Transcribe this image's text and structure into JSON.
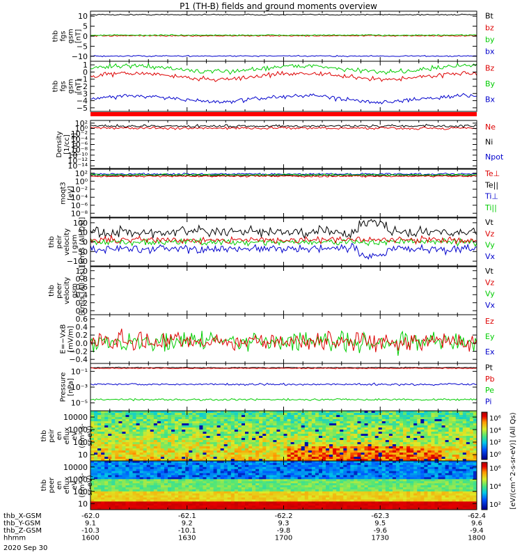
{
  "title": "P1 (TH-B) fields and ground moments overview",
  "footer": {
    "rows": [
      {
        "label": "thb_X-GSM",
        "values": [
          "-62.0",
          "-62.1",
          "-62.2",
          "-62.3",
          "-62.4"
        ]
      },
      {
        "label": "thb_Y-GSM",
        "values": [
          "9.1",
          "9.2",
          "9.3",
          "9.5",
          "9.6"
        ]
      },
      {
        "label": "thb_Z-GSM",
        "values": [
          "-10.3",
          "-10.1",
          "-9.8",
          "-9.6",
          "-9.4"
        ]
      },
      {
        "label": "hhmm",
        "values": [
          "1600",
          "1630",
          "1700",
          "1730",
          "1800"
        ]
      }
    ],
    "date": "2020 Sep 30"
  },
  "colorbar": {
    "label": "[eV/(cm^2-s-sr-eV)] (All Qs)",
    "upper_ticks": [
      "10⁶",
      "10⁴",
      "10²",
      "10⁰"
    ],
    "lower_ticks": [
      "10⁶",
      "10⁴",
      "10²"
    ]
  },
  "chart_data": [
    {
      "type": "line",
      "ylabel_lines": [
        "thb",
        "fgs",
        "gsm",
        "[nT]"
      ],
      "yticks": [
        "10",
        "5",
        "0",
        "−5",
        "−10"
      ],
      "ylim": [
        -12,
        12
      ],
      "legend": [
        "Bt",
        "bz",
        "by",
        "bx"
      ],
      "legend_colors": [
        "#000000",
        "#dd0000",
        "#00cc00",
        "#0000cc"
      ],
      "series": [
        {
          "name": "Bt",
          "color": "#000000",
          "approx": 10.3
        },
        {
          "name": "bz",
          "color": "#dd0000",
          "approx": 0.2
        },
        {
          "name": "by",
          "color": "#00cc00",
          "approx": 0.5
        },
        {
          "name": "bx",
          "color": "#0000cc",
          "approx": -9.5
        }
      ]
    },
    {
      "type": "line",
      "ylabel_lines": [
        "thb",
        "fgs",
        "gsm",
        "[nT]"
      ],
      "yticks": [
        "1",
        "0",
        "−1",
        "−2",
        "−3",
        "−4",
        "−5"
      ],
      "ylim": [
        -5.5,
        1.2
      ],
      "legend": [
        "Bz",
        "By",
        "Bx"
      ],
      "legend_colors": [
        "#dd0000",
        "#00cc00",
        "#0000cc"
      ],
      "series": [
        {
          "name": "Bz",
          "color": "#dd0000",
          "approx": -0.8
        },
        {
          "name": "By",
          "color": "#00cc00",
          "approx": 0.2
        },
        {
          "name": "Bx",
          "color": "#0000cc",
          "approx": -3.8
        }
      ]
    },
    {
      "type": "line",
      "ylabel_lines": [
        "Density",
        "[1/cc]",
        "[cm-3]"
      ],
      "yticks": [
        "10²",
        "10⁰",
        "10⁻²",
        "10⁻⁴",
        "10⁻⁶",
        "10⁻⁸",
        "10⁻¹⁰",
        "10⁻¹²",
        "10⁻¹⁴"
      ],
      "ylim": [
        -15,
        2
      ],
      "legend": [
        "Ne",
        "Ni",
        "Npot"
      ],
      "legend_colors": [
        "#dd0000",
        "#000000",
        "#0000cc"
      ]
    },
    {
      "type": "line",
      "ylabel_lines": [
        "moqt3",
        "[eV]"
      ],
      "yticks": [
        "10²",
        "10⁰",
        "10⁻²",
        "10⁻⁴",
        "10⁻⁶",
        "10⁻⁸"
      ],
      "ylim": [
        -9,
        3
      ],
      "legend": [
        "Te⊥",
        "Te||",
        "Ti⊥",
        "Ti||"
      ],
      "legend_colors": [
        "#dd0000",
        "#000000",
        "#0000cc",
        "#00cc00"
      ]
    },
    {
      "type": "line",
      "ylabel_lines": [
        "thb",
        "peir",
        "velocity",
        "gsm",
        "[km/s (All Qs)]"
      ],
      "yticks": [
        "100",
        "50",
        "0",
        "−50",
        "−100"
      ],
      "ylim": [
        -110,
        110
      ],
      "legend": [
        "Vt",
        "Vz",
        "Vy",
        "Vx"
      ],
      "legend_colors": [
        "#000000",
        "#dd0000",
        "#00cc00",
        "#0000cc"
      ]
    },
    {
      "type": "line",
      "ylabel_lines": [
        "thb",
        "peer",
        "velocity",
        "gsm",
        "[km/s (All Qs)]"
      ],
      "yticks": [
        "1.0",
        "0.8",
        "0.6",
        "0.4",
        "0.2",
        "0.0"
      ],
      "ylim": [
        0,
        1
      ],
      "legend": [
        "Vt",
        "Vz",
        "Vy",
        "Vx"
      ],
      "legend_colors": [
        "#000000",
        "#dd0000",
        "#00cc00",
        "#0000cc"
      ]
    },
    {
      "type": "line",
      "ylabel_lines": [
        "E=−VxB",
        "[mV/m]"
      ],
      "yticks": [
        "0.6",
        "0.4",
        "0.2",
        "0.0",
        "−0.2",
        "−0.4"
      ],
      "ylim": [
        -0.4,
        0.6
      ],
      "legend": [
        "Ez",
        "Ey",
        "Ex"
      ],
      "legend_colors": [
        "#dd0000",
        "#00cc00",
        "#0000cc"
      ]
    },
    {
      "type": "line",
      "ylabel_lines": [
        "Pressure",
        "[nPa]"
      ],
      "yticks": [
        "10⁻¹",
        "10⁻³",
        "10⁻⁵"
      ],
      "ylim": [
        -5.5,
        -0.5
      ],
      "legend": [
        "Pt",
        "Pb",
        "Pe",
        "Pi"
      ],
      "legend_colors": [
        "#000000",
        "#dd0000",
        "#00cc00",
        "#0000cc"
      ]
    },
    {
      "type": "heatmap",
      "ylabel_lines": [
        "thb",
        "peir",
        "en",
        "eflux",
        "eV",
        "(cm²-s-",
        "sr-eV)"
      ],
      "yticks": [
        "10000",
        "1000",
        "100",
        "10"
      ],
      "ylim": [
        5,
        20000
      ]
    },
    {
      "type": "heatmap",
      "ylabel_lines": [
        "thb",
        "peer",
        "en",
        "eflux",
        "eV",
        "(cm²-s-",
        "sr-eV)"
      ],
      "yticks": [
        "10000",
        "1000",
        "100",
        "10"
      ],
      "ylim": [
        5,
        20000
      ]
    }
  ]
}
